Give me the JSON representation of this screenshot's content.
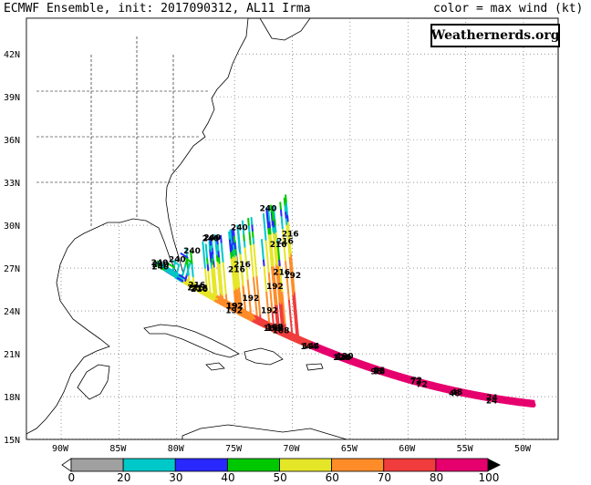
{
  "header": {
    "title": "ECMWF Ensemble, init: 2017090312, AL11 Irma",
    "legend_note": "color = max wind (kt)"
  },
  "brand": "Weathernerds.org",
  "axes": {
    "lat_labels": [
      "42N",
      "39N",
      "36N",
      "33N",
      "30N",
      "27N",
      "24N",
      "21N",
      "18N",
      "15N"
    ],
    "lon_labels": [
      "90W",
      "85W",
      "80W",
      "75W",
      "70W",
      "65W",
      "60W",
      "55W",
      "50W"
    ]
  },
  "colorbar": {
    "colors": [
      "#a0a0a0",
      "#00c8c8",
      "#2828ff",
      "#00c800",
      "#e6e628",
      "#ff8c28",
      "#f03c3c",
      "#e6006e"
    ],
    "labels": [
      "0",
      "20",
      "30",
      "40",
      "50",
      "60",
      "70",
      "80",
      "100"
    ]
  },
  "chart_data": {
    "type": "map",
    "forecast_hour_labels": [
      "240",
      "216",
      "240",
      "240",
      "240",
      "216",
      "216",
      "240",
      "240",
      "240",
      "216",
      "216",
      "216",
      "216",
      "216",
      "240",
      "192",
      "192",
      "192",
      "216",
      "192",
      "192",
      "192",
      "168",
      "168",
      "168",
      "168",
      "144",
      "144",
      "120",
      "120",
      "120",
      "96",
      "96",
      "96",
      "72",
      "72",
      "72",
      "48",
      "48",
      "24",
      "24",
      "240",
      "216",
      "192"
    ]
  }
}
